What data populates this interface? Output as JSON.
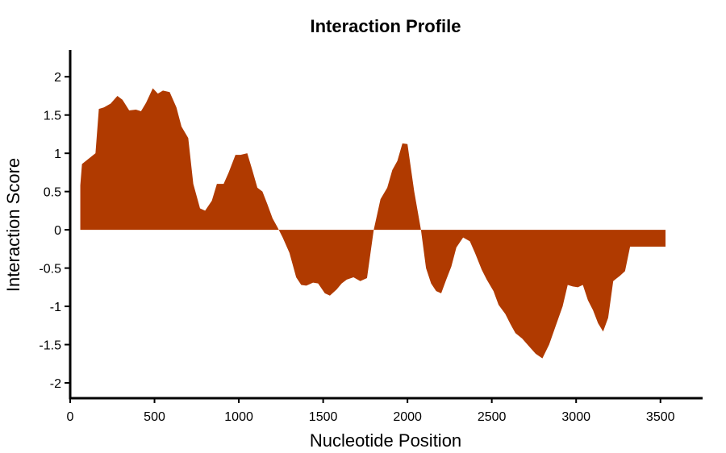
{
  "chart_data": {
    "type": "area",
    "title": "Interaction Profile",
    "xlabel": "Nucleotide Position",
    "ylabel": "Interaction Score",
    "xlim": [
      0,
      3750
    ],
    "ylim": [
      -2.2,
      2.35
    ],
    "xticks": [
      0,
      500,
      1000,
      1500,
      2000,
      2500,
      3000,
      3500
    ],
    "xtick_labels": [
      "0",
      "500",
      "1000",
      "1500",
      "2000",
      "2500",
      "3000",
      "3500"
    ],
    "yticks": [
      2,
      1.5,
      1,
      0.5,
      0,
      -0.5,
      -1,
      -1.5,
      -2
    ],
    "ytick_labels": [
      "2",
      "1.5",
      "1",
      "0.5",
      "0",
      "-0.5",
      "-1",
      "-1.5",
      "-2"
    ],
    "grid": false,
    "legend": "none",
    "fill_color": "#b03a00",
    "series": [
      {
        "x": [
          60,
          70,
          150,
          170,
          200,
          240,
          280,
          310,
          350,
          390,
          420,
          450,
          490,
          520,
          550,
          590,
          630,
          660,
          700,
          730,
          770,
          800,
          840,
          870,
          910,
          940,
          980,
          1010,
          1050,
          1080,
          1110,
          1140,
          1170,
          1200,
          1230,
          1260,
          1300,
          1340,
          1370,
          1400,
          1440,
          1470,
          1510,
          1540,
          1580,
          1610,
          1640,
          1680,
          1720,
          1760,
          1800,
          1840,
          1880,
          1910,
          1940,
          1970,
          2000,
          2040,
          2080,
          2110,
          2140,
          2170,
          2200,
          2230,
          2260,
          2290,
          2330,
          2370,
          2400,
          2440,
          2470,
          2510,
          2540,
          2580,
          2610,
          2640,
          2680,
          2720,
          2760,
          2800,
          2840,
          2880,
          2920,
          2950,
          2980,
          3010,
          3040,
          3070,
          3100,
          3130,
          3160,
          3190,
          3220,
          3260,
          3290,
          3320,
          3350,
          3380,
          3400,
          3430,
          3460,
          3490,
          3530
        ],
        "y": [
          0.58,
          0.86,
          1.0,
          1.58,
          1.6,
          1.65,
          1.75,
          1.7,
          1.56,
          1.57,
          1.55,
          1.66,
          1.85,
          1.78,
          1.82,
          1.8,
          1.6,
          1.35,
          1.2,
          0.6,
          0.28,
          0.25,
          0.38,
          0.6,
          0.6,
          0.75,
          0.98,
          0.98,
          1.0,
          0.78,
          0.55,
          0.5,
          0.33,
          0.15,
          0.03,
          -0.1,
          -0.3,
          -0.62,
          -0.72,
          -0.73,
          -0.69,
          -0.7,
          -0.83,
          -0.86,
          -0.78,
          -0.7,
          -0.65,
          -0.62,
          -0.67,
          -0.63,
          0.0,
          0.4,
          0.55,
          0.78,
          0.9,
          1.13,
          1.12,
          0.5,
          0.0,
          -0.5,
          -0.7,
          -0.8,
          -0.83,
          -0.65,
          -0.48,
          -0.23,
          -0.1,
          -0.15,
          -0.3,
          -0.52,
          -0.65,
          -0.8,
          -0.98,
          -1.1,
          -1.23,
          -1.35,
          -1.42,
          -1.52,
          -1.62,
          -1.68,
          -1.5,
          -1.25,
          -1.0,
          -0.72,
          -0.74,
          -0.75,
          -0.72,
          -0.92,
          -1.05,
          -1.22,
          -1.33,
          -1.15,
          -0.67,
          -0.6,
          -0.54,
          -0.22,
          -0.22,
          -0.22,
          -0.22,
          -0.22,
          -0.22,
          -0.22,
          -0.22
        ]
      }
    ]
  }
}
